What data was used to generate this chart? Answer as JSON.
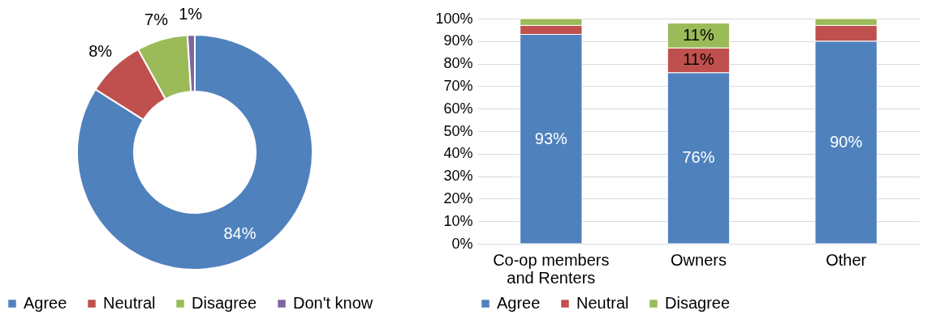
{
  "chart_data": [
    {
      "type": "donut",
      "categories": [
        "Agree",
        "Neutral",
        "Disagree",
        "Don't know"
      ],
      "values": [
        84,
        8,
        7,
        1
      ],
      "colors": [
        "#4f81bd",
        "#c0504d",
        "#9bbb59",
        "#8064a2"
      ],
      "value_labels": [
        "84%",
        "8%",
        "7%",
        "1%"
      ],
      "legend": "bottom"
    },
    {
      "type": "bar",
      "stacked": true,
      "categories": [
        "Co-op members and Renters",
        "Owners",
        "Other"
      ],
      "series": [
        {
          "name": "Agree",
          "color": "#4f81bd",
          "values": [
            93,
            76,
            90
          ],
          "value_labels": [
            "93%",
            "76%",
            "90%"
          ]
        },
        {
          "name": "Neutral",
          "color": "#c0504d",
          "values": [
            4,
            11,
            7
          ],
          "value_labels": [
            null,
            "11%",
            null
          ]
        },
        {
          "name": "Disagree",
          "color": "#9bbb59",
          "values": [
            3,
            11,
            3
          ],
          "value_labels": [
            null,
            "11%",
            null
          ]
        }
      ],
      "ylim": [
        0,
        100
      ],
      "yticks": [
        {
          "value": 0,
          "label": "0%"
        },
        {
          "value": 10,
          "label": "10%"
        },
        {
          "value": 20,
          "label": "20%"
        },
        {
          "value": 30,
          "label": "30%"
        },
        {
          "value": 40,
          "label": "40%"
        },
        {
          "value": 50,
          "label": "50%"
        },
        {
          "value": 60,
          "label": "60%"
        },
        {
          "value": 70,
          "label": "70%"
        },
        {
          "value": 80,
          "label": "80%"
        },
        {
          "value": 90,
          "label": "90%"
        },
        {
          "value": 100,
          "label": "100%"
        }
      ],
      "grid": "y",
      "legend": "bottom"
    }
  ]
}
